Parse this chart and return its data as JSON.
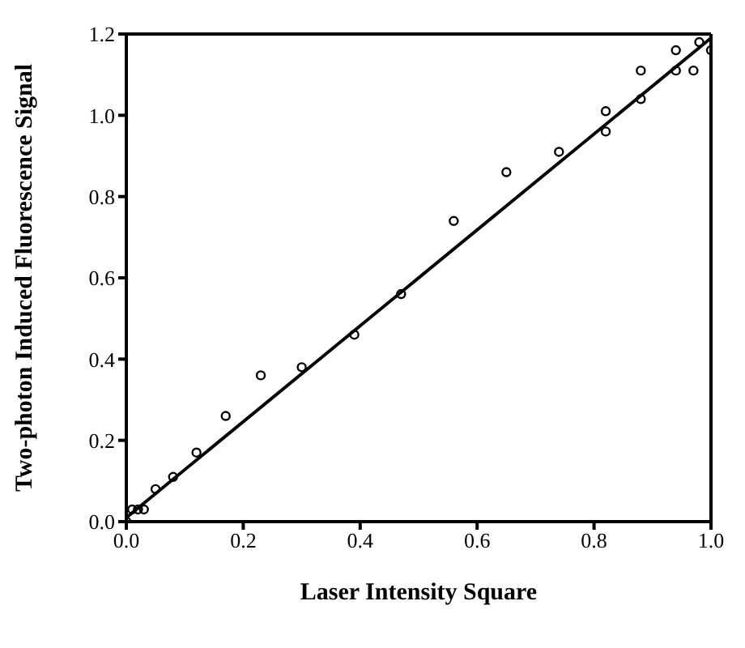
{
  "chart_data": {
    "type": "scatter",
    "xlabel": "Laser Intensity Square",
    "ylabel": "Two-photon Induced Fluorescence Signal",
    "xlim": [
      0,
      1
    ],
    "ylim": [
      0,
      1.2
    ],
    "xticks": [
      {
        "value": 0,
        "label": "0.0"
      },
      0.2,
      0.4,
      0.6,
      0.8,
      {
        "value": 1,
        "label": "1.0"
      }
    ],
    "yticks": [
      {
        "value": 0,
        "label": "0.0"
      },
      0.2,
      0.4,
      0.6,
      0.8,
      {
        "value": 1,
        "label": "1.0"
      },
      {
        "value": 1.2,
        "label": "1.2"
      }
    ],
    "legend": false,
    "series": [
      {
        "color": "#000000",
        "marker": "circle",
        "x": [
          0,
          0.01,
          0.02,
          0.03,
          0.05,
          0.08,
          0.12,
          0.17,
          0.23,
          0.3,
          0.39,
          0.47,
          0.56,
          0.65,
          0.74,
          0.82,
          0.82,
          0.88,
          0.88,
          0.94,
          0.94,
          0.97,
          0.98,
          1.0
        ],
        "values": [
          0,
          0.03,
          0.03,
          0.03,
          0.08,
          0.11,
          0.17,
          0.26,
          0.36,
          0.38,
          0.46,
          0.56,
          0.74,
          0.86,
          0.91,
          1.01,
          0.96,
          1.11,
          1.04,
          1.16,
          1.11,
          1.11,
          1.18,
          1.16
        ]
      },
      {
        "type": "line",
        "color": "#000000",
        "marker": "none",
        "x": [
          0,
          1
        ],
        "values": [
          0.01,
          1.19
        ]
      }
    ]
  }
}
